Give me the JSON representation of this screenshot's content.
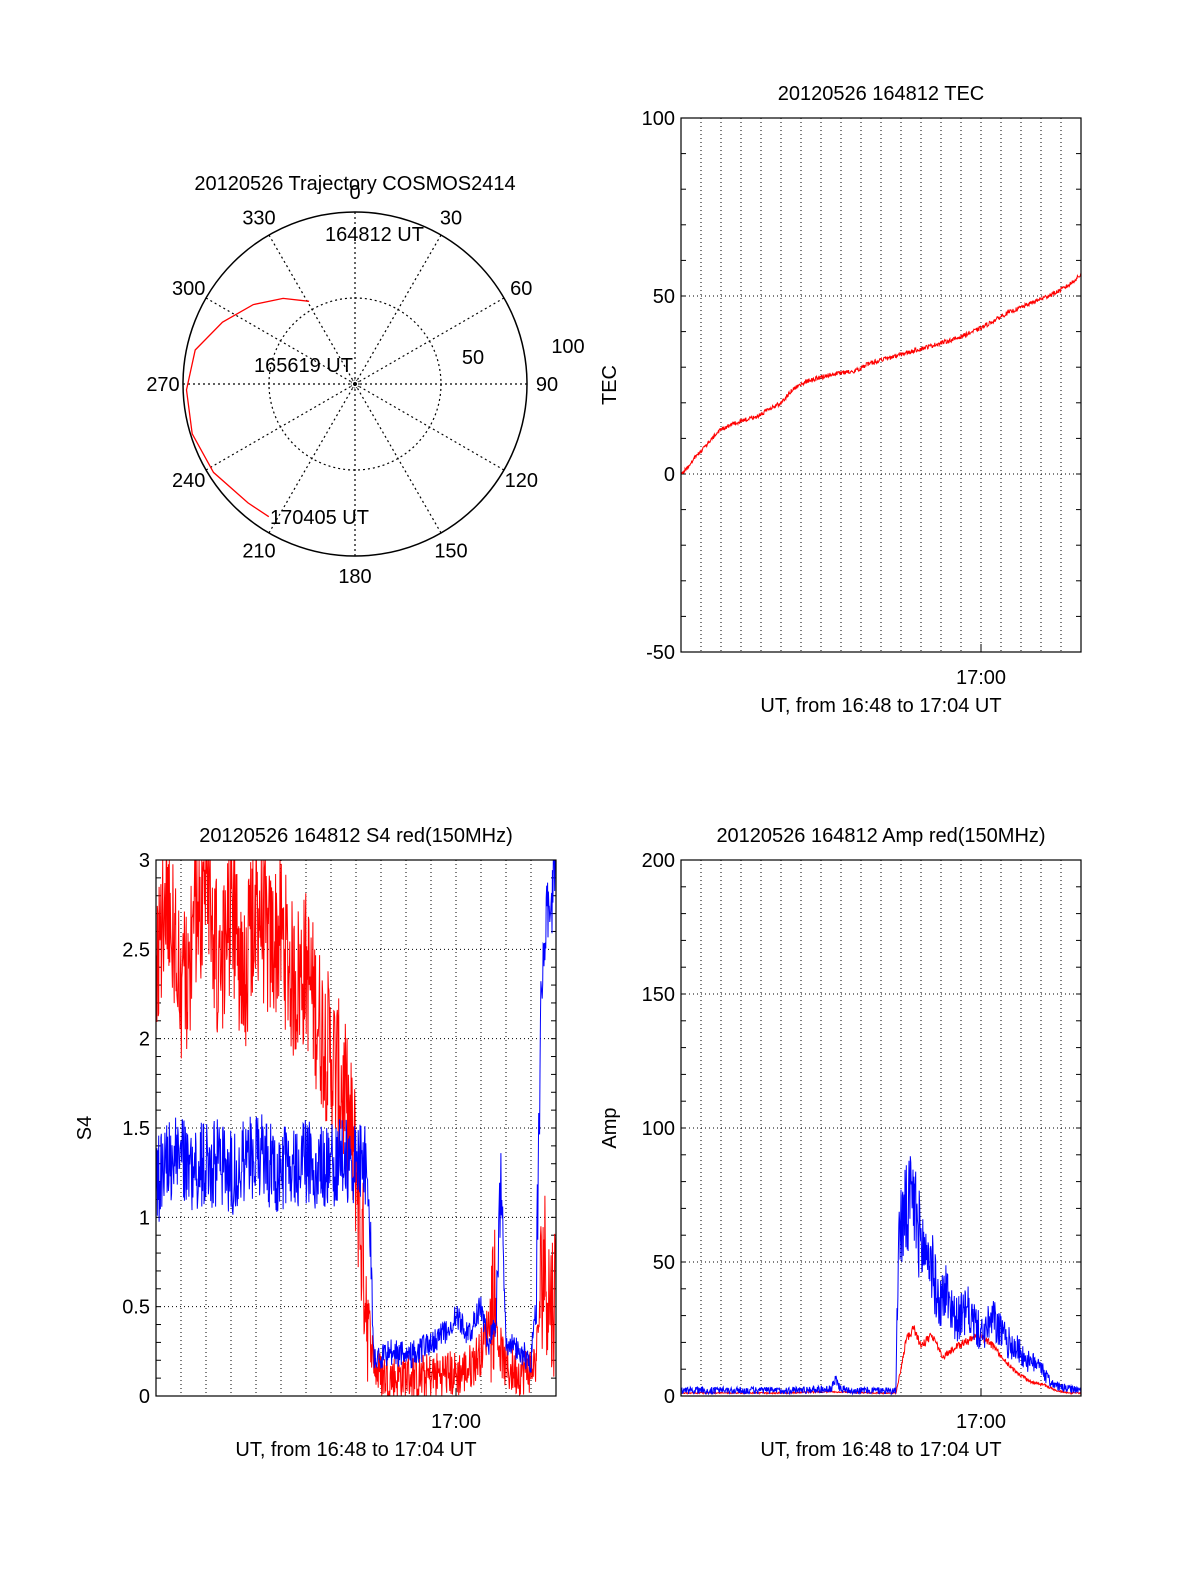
{
  "colors": {
    "red": "#ff0000",
    "blue": "#0000ff",
    "grid": "#000000"
  },
  "chart_data": [
    {
      "id": "trajectory",
      "type": "polar",
      "title": "20120526 Trajectory COSMOS2414",
      "azimuth_labels": [
        "0",
        "30",
        "60",
        "90",
        "120",
        "150",
        "180",
        "210",
        "240",
        "270",
        "300",
        "330"
      ],
      "radial_ticks": [
        50,
        100
      ],
      "radial_labels": [
        "50",
        "100"
      ],
      "track": {
        "color": "red",
        "points": [
          [
            331,
            55
          ],
          [
            320,
            65
          ],
          [
            308,
            75
          ],
          [
            295,
            85
          ],
          [
            282,
            95
          ],
          [
            268,
            98
          ],
          [
            253,
            99
          ],
          [
            238,
            97
          ],
          [
            222,
            93
          ],
          [
            213,
            92
          ]
        ]
      },
      "annotations": [
        {
          "text": "164812 UT",
          "az": 331,
          "el": 55
        },
        {
          "text": "165619 UT",
          "az": 271,
          "el": 10
        },
        {
          "text": "170405 UT",
          "az": 213,
          "el": 92
        }
      ]
    },
    {
      "id": "tec",
      "type": "line",
      "title": "20120526 164812 TEC",
      "ylabel": "TEC",
      "xlabel": "UT, from 16:48 to 17:04 UT",
      "x_tick_label": "17:00",
      "x_tick_value": 12,
      "xlim": [
        0,
        16
      ],
      "ylim": [
        -50,
        100
      ],
      "yticks": [
        -50,
        0,
        50,
        100
      ],
      "x_grid": [
        0.8,
        1.6,
        2.4,
        3.2,
        4.0,
        4.8,
        5.6,
        6.4,
        7.2,
        8.0,
        8.8,
        9.6,
        10.4,
        11.2,
        12.0,
        12.8,
        13.6,
        14.4,
        15.2
      ],
      "series": [
        {
          "color": "red",
          "noise": 0.6,
          "x": [
            0,
            0.3,
            0.6,
            1,
            1.5,
            2,
            2.5,
            3,
            3.5,
            4,
            4.5,
            5,
            5.5,
            6,
            6.5,
            7,
            7.5,
            8,
            8.5,
            9,
            9.5,
            10,
            11,
            12,
            13,
            14,
            15,
            15.5,
            16
          ],
          "y": [
            0,
            2,
            5,
            8,
            12,
            14,
            15,
            16,
            18,
            20,
            24,
            26,
            27,
            28,
            28.5,
            29,
            31,
            32,
            33,
            34,
            35,
            36,
            38,
            41,
            45,
            48,
            51,
            53,
            56
          ]
        }
      ]
    },
    {
      "id": "s4",
      "type": "line",
      "title": "20120526 164812 S4 red(150MHz)",
      "ylabel": "S4",
      "xlabel": "UT, from 16:48 to 17:04 UT",
      "x_tick_label": "17:00",
      "x_tick_value": 12,
      "xlim": [
        0,
        16
      ],
      "ylim": [
        0,
        3
      ],
      "yticks": [
        0,
        0.5,
        1,
        1.5,
        2,
        2.5,
        3
      ],
      "ytick_labels": [
        "0",
        "0.5",
        "1",
        "1.5",
        "2",
        "2.5",
        "3"
      ],
      "x_grid": [
        1,
        2,
        3,
        4,
        5,
        6,
        7,
        8,
        9,
        10,
        11,
        12,
        13,
        14,
        15,
        16
      ],
      "series": [
        {
          "color": "red",
          "x": [
            0,
            0.5,
            1,
            1.5,
            2,
            2.5,
            3,
            3.5,
            4,
            4.5,
            5,
            5.5,
            6,
            6.5,
            7,
            7.5,
            8,
            8.2,
            8.6,
            8.8,
            9,
            9.5,
            10,
            10.5,
            11,
            11.5,
            12,
            12.5,
            13,
            13.3,
            13.5,
            13.7,
            14,
            14.5,
            15,
            15.2,
            15.5,
            15.8,
            16
          ],
          "y": [
            2.5,
            2.8,
            2.2,
            2.6,
            2.9,
            2.4,
            2.7,
            2.3,
            2.8,
            2.5,
            2.6,
            2.3,
            2.4,
            2.1,
            1.9,
            1.7,
            1.3,
            0.9,
            0.3,
            0.15,
            0.12,
            0.1,
            0.12,
            0.1,
            0.11,
            0.13,
            0.12,
            0.15,
            0.25,
            0.4,
            0.6,
            0.3,
            0.15,
            0.13,
            0.15,
            0.2,
            0.8,
            0.5,
            0.6
          ],
          "noise": 0.45
        },
        {
          "color": "blue",
          "x": [
            0,
            0.5,
            1,
            1.5,
            2,
            2.5,
            3,
            3.5,
            4,
            4.5,
            5,
            5.5,
            6,
            6.5,
            7,
            7.5,
            8,
            8.5,
            8.7,
            9,
            9.5,
            10,
            10.5,
            11,
            11.5,
            12,
            12.5,
            13,
            13.3,
            13.6,
            13.8,
            14,
            14.5,
            15,
            15.2,
            15.4,
            15.6,
            15.8,
            16
          ],
          "y": [
            1.2,
            1.3,
            1.35,
            1.25,
            1.3,
            1.3,
            1.25,
            1.3,
            1.35,
            1.3,
            1.25,
            1.3,
            1.3,
            1.25,
            1.3,
            1.3,
            1.3,
            1.3,
            0.2,
            0.22,
            0.25,
            0.22,
            0.25,
            0.3,
            0.35,
            0.45,
            0.35,
            0.5,
            0.3,
            0.4,
            1.2,
            0.3,
            0.25,
            0.2,
            0.5,
            2.2,
            2.6,
            2.8,
            3.0
          ],
          "noise": 0.25
        }
      ]
    },
    {
      "id": "amp",
      "type": "line",
      "title": "20120526 164812 Amp red(150MHz)",
      "ylabel": "Amp",
      "xlabel": "UT, from 16:48 to 17:04 UT",
      "x_tick_label": "17:00",
      "x_tick_value": 12,
      "xlim": [
        0,
        16
      ],
      "ylim": [
        0,
        200
      ],
      "yticks": [
        0,
        50,
        100,
        150,
        200
      ],
      "x_grid": [
        0.8,
        1.6,
        2.4,
        3.2,
        4.0,
        4.8,
        5.6,
        6.4,
        7.2,
        8.0,
        8.8,
        9.6,
        10.4,
        11.2,
        12.0,
        12.8,
        13.6,
        14.4,
        15.2
      ],
      "series": [
        {
          "color": "red",
          "x": [
            0,
            2,
            4,
            6,
            8,
            8.6,
            8.8,
            9,
            9.3,
            9.6,
            10,
            10.5,
            11,
            11.5,
            12,
            12.5,
            13,
            13.5,
            14,
            14.5,
            15,
            15.5,
            16
          ],
          "y": [
            1,
            1,
            1,
            1.5,
            1,
            1,
            10,
            20,
            25,
            18,
            22,
            14,
            18,
            20,
            22,
            18,
            12,
            8,
            5,
            4,
            2,
            1,
            1
          ],
          "noise": 4
        },
        {
          "color": "blue",
          "x": [
            0,
            2,
            4,
            6,
            6.2,
            6.4,
            7,
            8,
            8.6,
            8.7,
            9,
            9.3,
            9.6,
            10,
            10.3,
            10.6,
            11,
            11.5,
            12,
            12.5,
            13,
            13.5,
            14,
            14.3,
            14.6,
            15,
            15.5,
            16
          ],
          "y": [
            1.5,
            1.5,
            1.5,
            2,
            5,
            2,
            1.5,
            1.5,
            1.5,
            55,
            60,
            65,
            50,
            45,
            30,
            35,
            25,
            28,
            20,
            25,
            18,
            15,
            10,
            12,
            6,
            3,
            2,
            1.5
          ],
          "noise": 18
        }
      ]
    }
  ]
}
